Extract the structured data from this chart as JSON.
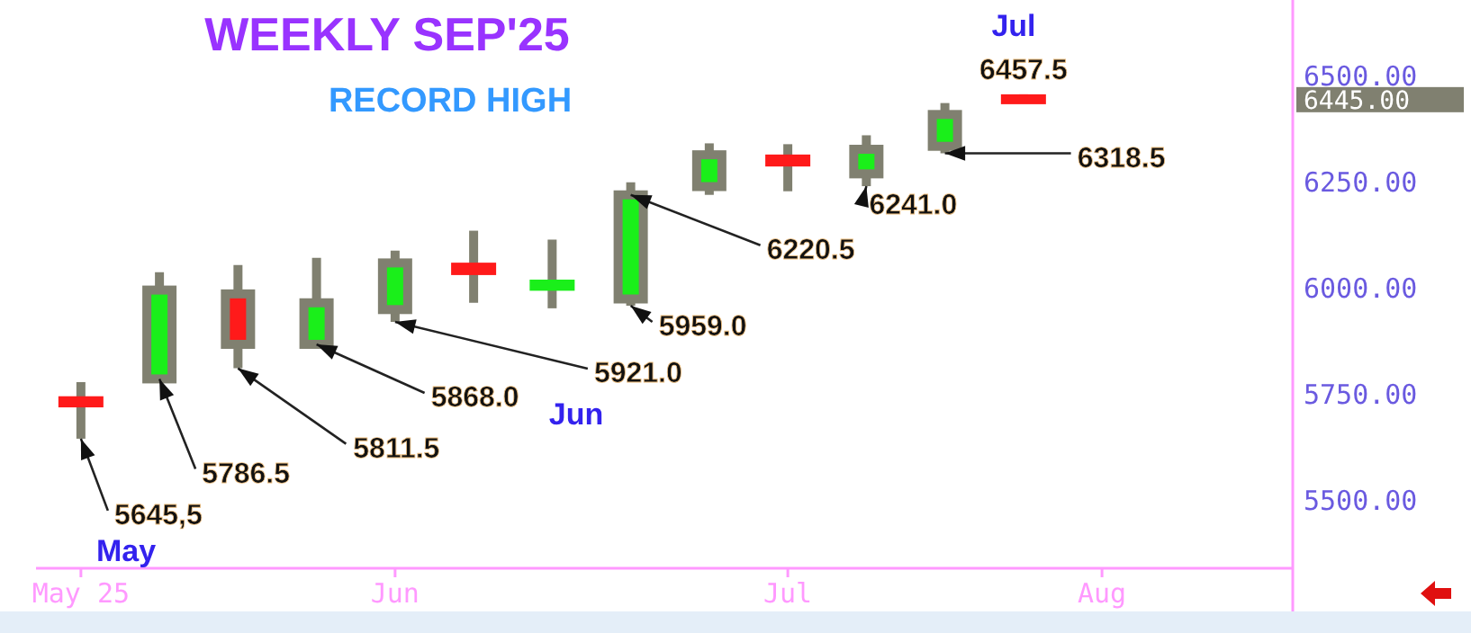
{
  "chart_data": {
    "type": "candlestick",
    "title": "WEEKLY SEP'25",
    "subtitle": "RECORD HIGH",
    "x": [
      "2025-05-05",
      "2025-05-12",
      "2025-05-19",
      "2025-05-26",
      "2025-06-02",
      "2025-06-09",
      "2025-06-16",
      "2025-06-23",
      "2025-06-30",
      "2025-07-07",
      "2025-07-14",
      "2025-07-21",
      "2025-07-28"
    ],
    "ohlc": [
      [
        5735,
        5779,
        5645.5,
        5730
      ],
      [
        5786.5,
        6038,
        5786.5,
        5996
      ],
      [
        5987,
        6055,
        5811.5,
        5868
      ],
      [
        5868,
        6072,
        5868,
        5966
      ],
      [
        5950,
        6089,
        5921,
        6060
      ],
      [
        6050,
        6136,
        5966,
        6042
      ],
      [
        6005,
        6115,
        5953,
        6010
      ],
      [
        5975,
        6250,
        5959,
        6220.5
      ],
      [
        6240,
        6342,
        6220.5,
        6315
      ],
      [
        6305,
        6340,
        6229,
        6298
      ],
      [
        6270,
        6361,
        6241,
        6328
      ],
      [
        6335,
        6437,
        6318.5,
        6410
      ],
      [
        6447,
        6457.5,
        6440,
        6445
      ]
    ],
    "colors": [
      "#ff1a1a",
      "#1aef1a",
      "#ff1a1a",
      "#1aef1a",
      "#1aef1a",
      "#ff1a1a",
      "#1aef1a",
      "#1aef1a",
      "#1aef1a",
      "#ff1a1a",
      "#1aef1a",
      "#1aef1a",
      "#ff1a1a"
    ],
    "xlim": [
      "2025-05-01",
      "2025-08-21"
    ],
    "xticks": [
      {
        "value": "2025-05-05",
        "label": "May 25"
      },
      {
        "value": "2025-06-02",
        "label": "Jun"
      },
      {
        "value": "2025-07-07",
        "label": "Jul"
      },
      {
        "value": "2025-08-04",
        "label": "Aug"
      }
    ],
    "ylim": [
      5340,
      6680
    ],
    "yticks": [
      {
        "value": 5500,
        "label": "5500.00"
      },
      {
        "value": 5750,
        "label": "5750.00"
      },
      {
        "value": 6000,
        "label": "6000.00"
      },
      {
        "value": 6250,
        "label": "6250.00"
      },
      {
        "value": 6500,
        "label": "6500.00"
      }
    ],
    "annotations": [
      {
        "text": "5645,5",
        "x": "2025-05-05",
        "y": 5645.5
      },
      {
        "text": "5786.5",
        "x": "2025-05-12",
        "y": 5786.5
      },
      {
        "text": "5811.5",
        "x": "2025-05-19",
        "y": 5811.5
      },
      {
        "text": "5868.0",
        "x": "2025-05-26",
        "y": 5868
      },
      {
        "text": "5921.0",
        "x": "2025-06-02",
        "y": 5921
      },
      {
        "text": "5959.0",
        "x": "2025-06-23",
        "y": 5959
      },
      {
        "text": "6220.5",
        "x": "2025-06-23",
        "y": 6220.5
      },
      {
        "text": "6241.0",
        "x": "2025-07-14",
        "y": 6241
      },
      {
        "text": "6318.5",
        "x": "2025-07-21",
        "y": 6318.5
      },
      {
        "text": "6457.5",
        "x": "2025-07-28",
        "y": 6457.5
      },
      "May",
      "Jun",
      "Jul",
      "6445.00"
    ]
  }
}
